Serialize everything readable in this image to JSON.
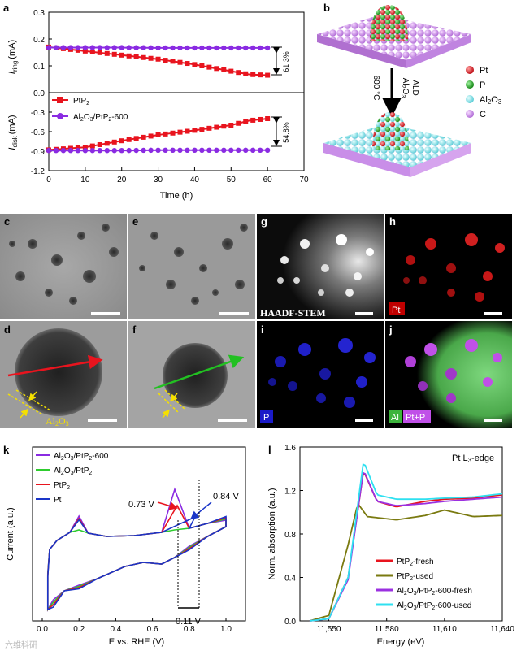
{
  "panels": {
    "a": {
      "label": "a",
      "ring_ylabel": "I",
      "ring_ylabel_sub": "ring",
      "ring_ylabel_unit": "(mA)",
      "disk_ylabel": "I",
      "disk_ylabel_sub": "disk",
      "disk_ylabel_unit": "(mA)",
      "xlabel": "Time (h)",
      "ring_yticks": [
        "0.3",
        "0.2",
        "0.1",
        "0.0"
      ],
      "disk_yticks": [
        "-0.3",
        "-0.6",
        "-0.9",
        "-1.2"
      ],
      "xticks": [
        "0",
        "10",
        "20",
        "30",
        "40",
        "50",
        "60",
        "70"
      ],
      "legend": [
        {
          "pre": "PtP",
          "sub": "2",
          "post": "",
          "color": "#e8141e"
        },
        {
          "pre": "Al",
          "sub": "2",
          "mid": "O",
          "sub2": "3",
          "post": "/PtP",
          "sub3": "2",
          "tail": "-600",
          "color": "#8a2be2"
        }
      ],
      "ring_annotation": "61.3%",
      "disk_annotation": "54.8%"
    },
    "b": {
      "label": "b",
      "arrow_text_1": "ALD",
      "arrow_text_2_pre": "Al",
      "arrow_text_2_sub": "2",
      "arrow_text_2_mid": "O",
      "arrow_text_2_sub2": "3",
      "arrow_text_3": "600 °C",
      "legend": [
        {
          "name": "Pt",
          "color": "#e0202a"
        },
        {
          "name": "P",
          "color": "#2ca02c"
        },
        {
          "name": "Al2O3",
          "pre": "Al",
          "sub": "2",
          "mid": "O",
          "sub2": "3",
          "color": "#7fe0e8"
        },
        {
          "name": "C",
          "color": "#c98ee8"
        }
      ]
    },
    "micro": {
      "c": {
        "label": "c"
      },
      "e": {
        "label": "e"
      },
      "g": {
        "label": "g",
        "caption": "HAADF-STEM"
      },
      "h": {
        "label": "h",
        "tag": "Pt"
      },
      "d": {
        "label": "d",
        "caption_pre": "Al",
        "caption_sub": "2",
        "caption_mid": "O",
        "caption_sub2": "3"
      },
      "f": {
        "label": "f"
      },
      "i": {
        "label": "i",
        "tag": "P"
      },
      "j": {
        "label": "j",
        "tag_1": "Al",
        "tag_2": "Pt+P"
      }
    },
    "k": {
      "label": "k",
      "xlabel": "E vs. RHE (V)",
      "ylabel": "Current (a.u.)",
      "xticks": [
        "0.0",
        "0.2",
        "0.4",
        "0.6",
        "0.8",
        "1.0"
      ],
      "annot_073": "0.73 V",
      "annot_084": "0.84 V",
      "annot_011": "0.11 V",
      "legend": [
        {
          "pre": "Al",
          "sub": "2",
          "mid": "O",
          "sub2": "3",
          "post": "/PtP",
          "sub3": "2",
          "tail": "-600",
          "color": "#8a2be2"
        },
        {
          "pre": "Al",
          "sub": "2",
          "mid": "O",
          "sub2": "3",
          "post": "/PtP",
          "sub3": "2",
          "tail": "",
          "color": "#2ecc2e"
        },
        {
          "pre": "PtP",
          "sub": "2",
          "mid": "",
          "sub2": "",
          "post": "",
          "sub3": "",
          "tail": "",
          "color": "#e8141e"
        },
        {
          "pre": "Pt",
          "sub": "",
          "mid": "",
          "sub2": "",
          "post": "",
          "sub3": "",
          "tail": "",
          "color": "#1a35c8"
        }
      ]
    },
    "l": {
      "label": "l",
      "title_pre": "Pt L",
      "title_sub": "3",
      "title_post": "-edge",
      "xlabel": "Energy (eV)",
      "ylabel": "Norm. absorption (a.u.)",
      "xticks": [
        "11,550",
        "11,580",
        "11,610",
        "11,640"
      ],
      "yticks": [
        "1.6",
        "1.2",
        "0.8",
        "0.4",
        "0.0"
      ],
      "legend": [
        {
          "pre": "PtP",
          "sub": "2",
          "post": "-fresh",
          "color": "#e8141e"
        },
        {
          "pre": "PtP",
          "sub": "2",
          "post": "-used",
          "color": "#7a7a10"
        },
        {
          "pre": "Al",
          "sub": "2",
          "mid": "O",
          "sub2": "3",
          "post": "/PtP",
          "sub3": "2",
          "tail": "-600-fresh",
          "color": "#9b30e0"
        },
        {
          "pre": "Al",
          "sub": "2",
          "mid": "O",
          "sub2": "3",
          "post": "/PtP",
          "sub3": "2",
          "tail": "-600-used",
          "color": "#2fe0f0"
        }
      ]
    }
  },
  "watermark": "六维科研",
  "chart_data": [
    {
      "type": "line",
      "title": "a (ring current)",
      "xlabel": "Time (h)",
      "ylabel": "I_ring (mA)",
      "xlim": [
        0,
        70
      ],
      "ylim": [
        0,
        0.3
      ],
      "series": [
        {
          "name": "PtP2",
          "x": [
            0,
            10,
            20,
            30,
            40,
            50,
            55,
            60
          ],
          "y": [
            0.17,
            0.155,
            0.14,
            0.125,
            0.105,
            0.08,
            0.068,
            0.065
          ]
        },
        {
          "name": "Al2O3/PtP2-600",
          "x": [
            0,
            10,
            20,
            30,
            40,
            50,
            60
          ],
          "y": [
            0.168,
            0.168,
            0.168,
            0.167,
            0.167,
            0.167,
            0.167
          ]
        }
      ]
    },
    {
      "type": "line",
      "title": "a (disk current)",
      "xlabel": "Time (h)",
      "ylabel": "I_disk (mA)",
      "xlim": [
        0,
        70
      ],
      "ylim": [
        -1.2,
        0
      ],
      "series": [
        {
          "name": "PtP2",
          "x": [
            0,
            10,
            20,
            30,
            40,
            50,
            55,
            60
          ],
          "y": [
            -0.88,
            -0.84,
            -0.74,
            -0.65,
            -0.58,
            -0.5,
            -0.43,
            -0.4
          ]
        },
        {
          "name": "Al2O3/PtP2-600",
          "x": [
            0,
            10,
            20,
            30,
            40,
            50,
            60
          ],
          "y": [
            -0.89,
            -0.89,
            -0.89,
            -0.885,
            -0.885,
            -0.885,
            -0.885
          ]
        }
      ]
    },
    {
      "type": "line",
      "title": "k",
      "xlabel": "E vs. RHE (V)",
      "ylabel": "Current (a.u.)",
      "xlim": [
        0,
        1.0
      ],
      "series": [
        {
          "name": "Al2O3/PtP2-600",
          "x": [
            0.05,
            0.2,
            0.4,
            0.6,
            0.73,
            0.84,
            1.0
          ]
        },
        {
          "name": "Al2O3/PtP2",
          "x": [
            0.05,
            0.2,
            0.4,
            0.6,
            0.73,
            0.84,
            1.0
          ]
        },
        {
          "name": "PtP2",
          "x": [
            0.05,
            0.2,
            0.4,
            0.6,
            0.73,
            0.84,
            1.0
          ]
        },
        {
          "name": "Pt",
          "x": [
            0.05,
            0.2,
            0.4,
            0.6,
            0.73,
            0.84,
            1.0
          ]
        }
      ],
      "annotations": [
        "0.73 V",
        "0.84 V",
        "0.11 V"
      ]
    },
    {
      "type": "line",
      "title": "l (Pt L3-edge)",
      "xlabel": "Energy (eV)",
      "ylabel": "Norm. absorption (a.u.)",
      "xlim": [
        11535,
        11640
      ],
      "ylim": [
        0,
        1.6
      ],
      "series": [
        {
          "name": "PtP2-fresh",
          "x": [
            11540,
            11550,
            11560,
            11568,
            11575,
            11585,
            11600,
            11610,
            11625,
            11640
          ],
          "y": [
            0.0,
            0.02,
            0.4,
            1.38,
            1.1,
            1.05,
            1.1,
            1.12,
            1.13,
            1.16
          ]
        },
        {
          "name": "PtP2-used",
          "x": [
            11540,
            11550,
            11560,
            11565,
            11570,
            11585,
            11600,
            11610,
            11625,
            11640
          ],
          "y": [
            0.0,
            0.05,
            0.7,
            1.08,
            0.96,
            0.93,
            0.97,
            1.02,
            0.96,
            0.97
          ]
        },
        {
          "name": "Al2O3/PtP2-600-fresh",
          "x": [
            11540,
            11550,
            11560,
            11568,
            11575,
            11585,
            11600,
            11610,
            11625,
            11640
          ],
          "y": [
            0.0,
            0.02,
            0.38,
            1.39,
            1.1,
            1.06,
            1.08,
            1.1,
            1.12,
            1.14
          ]
        },
        {
          "name": "Al2O3/PtP2-600-used",
          "x": [
            11540,
            11550,
            11560,
            11568,
            11575,
            11585,
            11600,
            11610,
            11625,
            11640
          ],
          "y": [
            0.0,
            0.02,
            0.4,
            1.47,
            1.16,
            1.12,
            1.12,
            1.13,
            1.14,
            1.17
          ]
        }
      ]
    }
  ]
}
